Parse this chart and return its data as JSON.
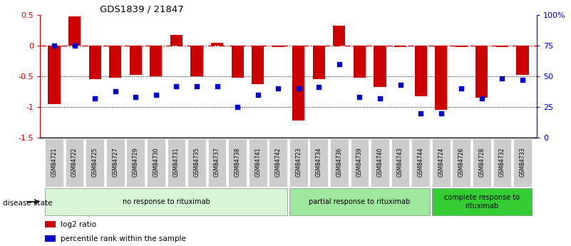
{
  "title": "GDS1839 / 21847",
  "samples": [
    "GSM84721",
    "GSM84722",
    "GSM84725",
    "GSM84727",
    "GSM84729",
    "GSM84730",
    "GSM84731",
    "GSM84735",
    "GSM84737",
    "GSM84738",
    "GSM84741",
    "GSM84742",
    "GSM84723",
    "GSM84734",
    "GSM84736",
    "GSM84739",
    "GSM84740",
    "GSM84743",
    "GSM84744",
    "GSM84724",
    "GSM84726",
    "GSM84728",
    "GSM84732",
    "GSM84733"
  ],
  "log2_ratio": [
    -0.95,
    0.47,
    -0.55,
    -0.52,
    -0.48,
    -0.5,
    0.17,
    -0.5,
    0.05,
    -0.52,
    -0.63,
    -0.03,
    -1.22,
    -0.55,
    0.32,
    -0.52,
    -0.68,
    -0.03,
    -0.82,
    -1.05,
    -0.02,
    -0.85,
    -0.02,
    -0.48
  ],
  "percentile": [
    75,
    75,
    32,
    38,
    33,
    35,
    42,
    42,
    42,
    25,
    35,
    40,
    40,
    41,
    60,
    33,
    32,
    43,
    20,
    20,
    40,
    32,
    48,
    47
  ],
  "groups": [
    {
      "label": "no response to rituximab",
      "start": 0,
      "end": 12,
      "color": "#d8f5d8"
    },
    {
      "label": "partial response to rituximab",
      "start": 12,
      "end": 19,
      "color": "#a0e8a0"
    },
    {
      "label": "complete response to\nrituximab",
      "start": 19,
      "end": 24,
      "color": "#33cc33"
    }
  ],
  "bar_color": "#cc0000",
  "dot_color": "#0000cc",
  "ylim_left": [
    -1.5,
    0.5
  ],
  "ylim_right": [
    0,
    100
  ],
  "right_tick_labels": [
    "100%",
    "75",
    "50",
    "25",
    "0"
  ],
  "right_tick_vals": [
    100,
    75,
    50,
    25,
    0
  ],
  "left_tick_vals": [
    0.5,
    0,
    -0.5,
    -1.0,
    -1.5
  ],
  "left_tick_labels": [
    "0.5",
    "0",
    "-0.5",
    "-1",
    "-1.5"
  ],
  "disease_state_label": "disease state",
  "legend_items": [
    {
      "label": "log2 ratio",
      "color": "#cc0000"
    },
    {
      "label": "percentile rank within the sample",
      "color": "#0000cc"
    }
  ],
  "bar_width": 0.6,
  "dot_size": 4
}
